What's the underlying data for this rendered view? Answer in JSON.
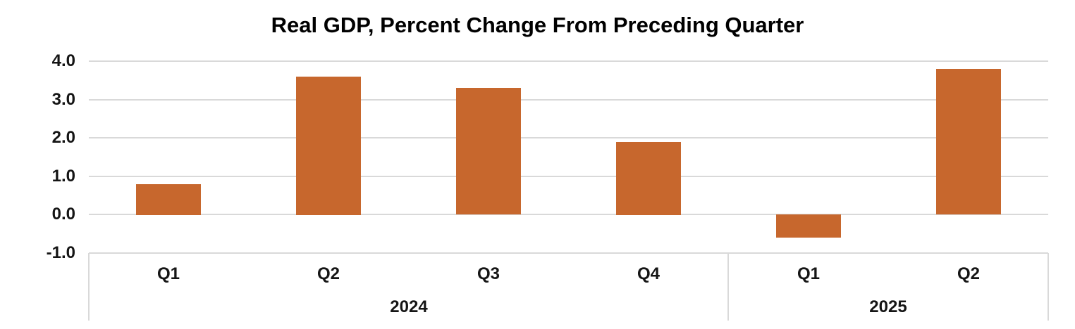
{
  "chart_data": {
    "type": "bar",
    "title": "Real GDP, Percent Change From Preceding Quarter",
    "categories": [
      "Q1",
      "Q2",
      "Q3",
      "Q4",
      "Q1",
      "Q2"
    ],
    "group_labels": [
      {
        "label": "2024",
        "span": 4
      },
      {
        "label": "2025",
        "span": 2
      }
    ],
    "values": [
      0.8,
      3.6,
      3.3,
      1.9,
      -0.6,
      3.8
    ],
    "series_name": "Real GDP percent change from preceding quarter",
    "xlabel": "",
    "ylabel": "",
    "ylim": [
      -1.0,
      4.0
    ],
    "ytick_labels": [
      "4.0",
      "3.0",
      "2.0",
      "1.0",
      "0.0",
      "-1.0"
    ],
    "ytick_values": [
      4.0,
      3.0,
      2.0,
      1.0,
      0.0,
      -1.0
    ],
    "grid": true,
    "legend": false,
    "colors": {
      "bar": "#C7672D",
      "gridline": "#D9D9D9",
      "separator": "#D9D9D9",
      "title_text": "#000000",
      "axis_text": "#151515",
      "background": "#FFFFFF"
    }
  }
}
